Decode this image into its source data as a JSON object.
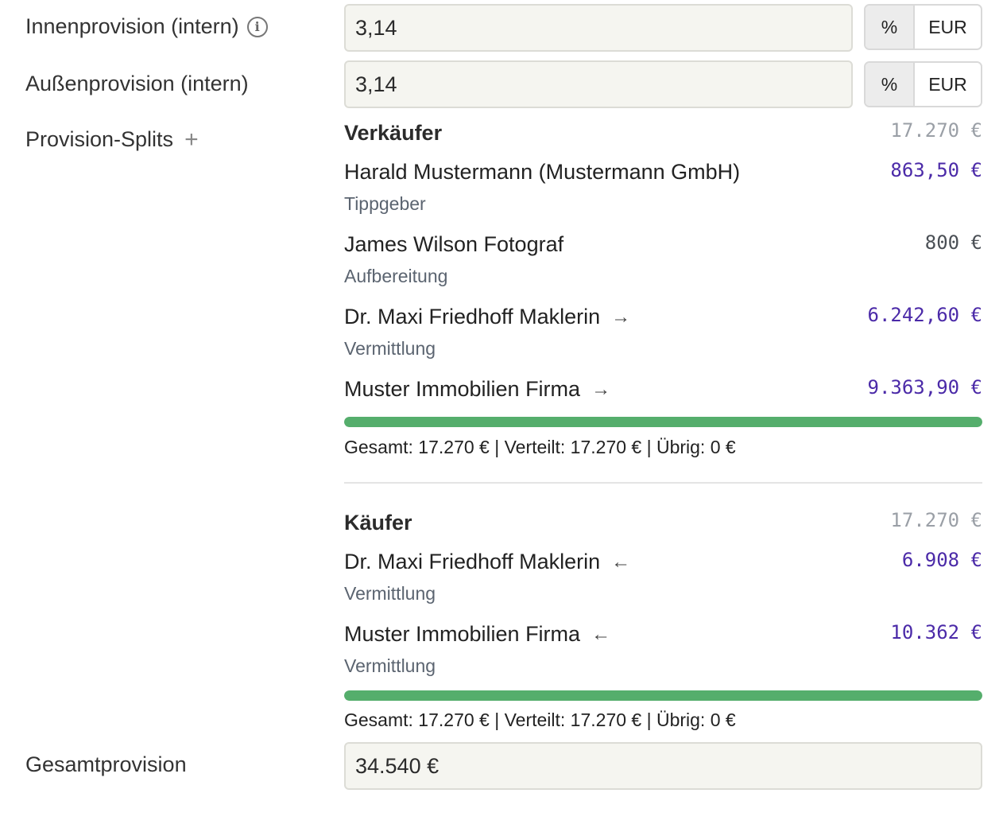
{
  "fields": {
    "innenprovision": {
      "label": "Innenprovision (intern)",
      "value": "3,14",
      "unit_percent": "%",
      "unit_eur": "EUR"
    },
    "aussenprovision": {
      "label": "Außenprovision (intern)",
      "value": "3,14",
      "unit_percent": "%",
      "unit_eur": "EUR"
    },
    "splits_label": "Provision-Splits",
    "gesamt": {
      "label": "Gesamtprovision",
      "value": "34.540 €"
    }
  },
  "seller": {
    "title": "Verkäufer",
    "total": "17.270 €",
    "entries": [
      {
        "name": "Harald Mustermann (Mustermann GmbH)",
        "role": "Tippgeber",
        "amount": "863,50 €",
        "arrow": ""
      },
      {
        "name": "James Wilson Fotograf",
        "role": "Aufbereitung",
        "amount": "800 €",
        "arrow": ""
      },
      {
        "name": "Dr. Maxi Friedhoff Maklerin",
        "role": "Vermittlung",
        "amount": "6.242,60 €",
        "arrow": "→"
      },
      {
        "name": "Muster Immobilien Firma",
        "role": "",
        "amount": "9.363,90 €",
        "arrow": "→"
      }
    ],
    "progress": 1.0,
    "summary": "Gesamt: 17.270 € | Verteilt: 17.270 € | Übrig: 0 €"
  },
  "buyer": {
    "title": "Käufer",
    "total": "17.270 €",
    "entries": [
      {
        "name": "Dr. Maxi Friedhoff Maklerin",
        "role": "Vermittlung",
        "amount": "6.908 €",
        "arrow": "←"
      },
      {
        "name": "Muster Immobilien Firma",
        "role": "Vermittlung",
        "amount": "10.362 €",
        "arrow": "←"
      }
    ],
    "progress": 1.0,
    "summary": "Gesamt: 17.270 € | Verteilt: 17.270 € | Übrig: 0 €"
  },
  "colors": {
    "accent_amount": "#4b2aa8",
    "progress": "#55ae6c"
  }
}
